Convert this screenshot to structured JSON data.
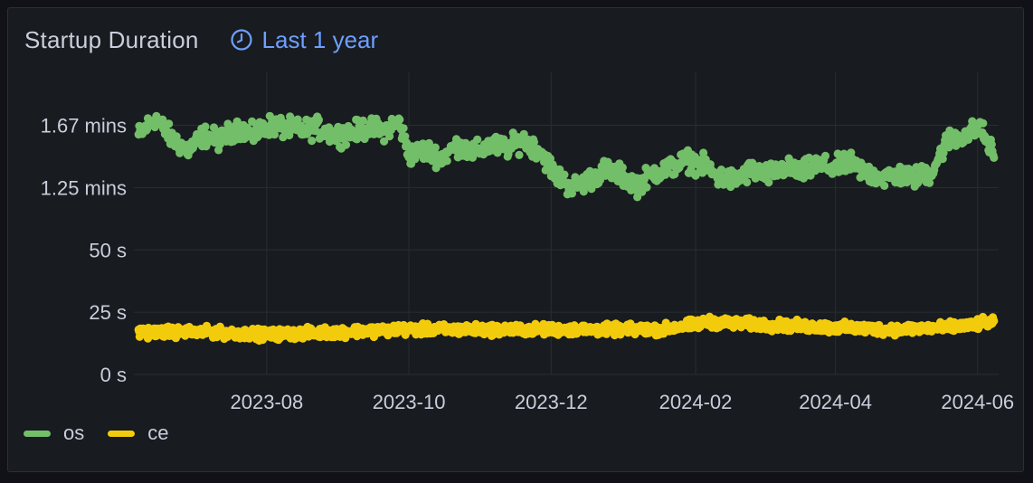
{
  "panel": {
    "title": "Startup Duration",
    "time_range": "Last 1 year",
    "time_icon": "clock-icon"
  },
  "colors": {
    "os": "#73bf69",
    "ce": "#f2cc0c",
    "grid": "#2a2d33",
    "text": "#ccccdc",
    "link": "#6e9fff"
  },
  "chart_data": {
    "type": "scatter",
    "title": "Startup Duration",
    "xlabel": "",
    "ylabel": "",
    "x_range": [
      "2023-06-05",
      "2024-06-10"
    ],
    "y_range_seconds": [
      0,
      114
    ],
    "y_ticks": [
      {
        "value": 0,
        "label": "0 s"
      },
      {
        "value": 25,
        "label": "25 s"
      },
      {
        "value": 50,
        "label": "50 s"
      },
      {
        "value": 75,
        "label": "1.25 mins"
      },
      {
        "value": 100,
        "label": "1.67 mins"
      }
    ],
    "x_ticks": [
      {
        "date": "2023-08-01",
        "label": "2023-08"
      },
      {
        "date": "2023-10-01",
        "label": "2023-10"
      },
      {
        "date": "2023-12-01",
        "label": "2023-12"
      },
      {
        "date": "2024-02-01",
        "label": "2024-02"
      },
      {
        "date": "2024-04-01",
        "label": "2024-04"
      },
      {
        "date": "2024-06-01",
        "label": "2024-06"
      }
    ],
    "grid": true,
    "legend_position": "bottom-left",
    "series": [
      {
        "name": "os",
        "points": [
          [
            "2023-06-07",
            96
          ],
          [
            "2023-06-14",
            103
          ],
          [
            "2023-06-21",
            95
          ],
          [
            "2023-06-28",
            90
          ],
          [
            "2023-07-05",
            96
          ],
          [
            "2023-07-12",
            94
          ],
          [
            "2023-07-19",
            99
          ],
          [
            "2023-07-26",
            96
          ],
          [
            "2023-08-02",
            100
          ],
          [
            "2023-08-09",
            99
          ],
          [
            "2023-08-16",
            98
          ],
          [
            "2023-08-23",
            99
          ],
          [
            "2023-08-30",
            96
          ],
          [
            "2023-09-06",
            97
          ],
          [
            "2023-09-13",
            99
          ],
          [
            "2023-09-20",
            98
          ],
          [
            "2023-09-27",
            101
          ],
          [
            "2023-10-01",
            88
          ],
          [
            "2023-10-08",
            90
          ],
          [
            "2023-10-15",
            87
          ],
          [
            "2023-10-22",
            92
          ],
          [
            "2023-10-29",
            89
          ],
          [
            "2023-11-05",
            92
          ],
          [
            "2023-11-12",
            91
          ],
          [
            "2023-11-19",
            94
          ],
          [
            "2023-11-26",
            90
          ],
          [
            "2023-12-03",
            80
          ],
          [
            "2023-12-10",
            75
          ],
          [
            "2023-12-17",
            78
          ],
          [
            "2023-12-24",
            82
          ],
          [
            "2023-12-31",
            80
          ],
          [
            "2024-01-07",
            76
          ],
          [
            "2024-01-14",
            81
          ],
          [
            "2024-01-21",
            83
          ],
          [
            "2024-01-28",
            86
          ],
          [
            "2024-02-04",
            84
          ],
          [
            "2024-02-11",
            79
          ],
          [
            "2024-02-18",
            78
          ],
          [
            "2024-02-25",
            82
          ],
          [
            "2024-03-03",
            80
          ],
          [
            "2024-03-10",
            83
          ],
          [
            "2024-03-17",
            81
          ],
          [
            "2024-03-24",
            84
          ],
          [
            "2024-03-31",
            83
          ],
          [
            "2024-04-07",
            85
          ],
          [
            "2024-04-14",
            81
          ],
          [
            "2024-04-21",
            79
          ],
          [
            "2024-04-28",
            80
          ],
          [
            "2024-05-05",
            79
          ],
          [
            "2024-05-12",
            81
          ],
          [
            "2024-05-19",
            94
          ],
          [
            "2024-05-26",
            96
          ],
          [
            "2024-06-02",
            99
          ],
          [
            "2024-06-08",
            88
          ]
        ],
        "spread": 6
      },
      {
        "name": "ce",
        "points": [
          [
            "2023-06-07",
            17
          ],
          [
            "2023-07-05",
            17
          ],
          [
            "2023-08-02",
            16
          ],
          [
            "2023-08-30",
            17
          ],
          [
            "2023-09-27",
            18
          ],
          [
            "2023-10-25",
            18
          ],
          [
            "2023-11-22",
            18
          ],
          [
            "2023-12-20",
            18
          ],
          [
            "2024-01-17",
            18
          ],
          [
            "2024-02-07",
            21
          ],
          [
            "2024-02-28",
            20
          ],
          [
            "2024-03-27",
            19
          ],
          [
            "2024-04-24",
            18
          ],
          [
            "2024-05-22",
            19
          ],
          [
            "2024-06-08",
            21
          ]
        ],
        "spread": 3
      }
    ]
  },
  "legend": [
    {
      "name": "os"
    },
    {
      "name": "ce"
    }
  ]
}
